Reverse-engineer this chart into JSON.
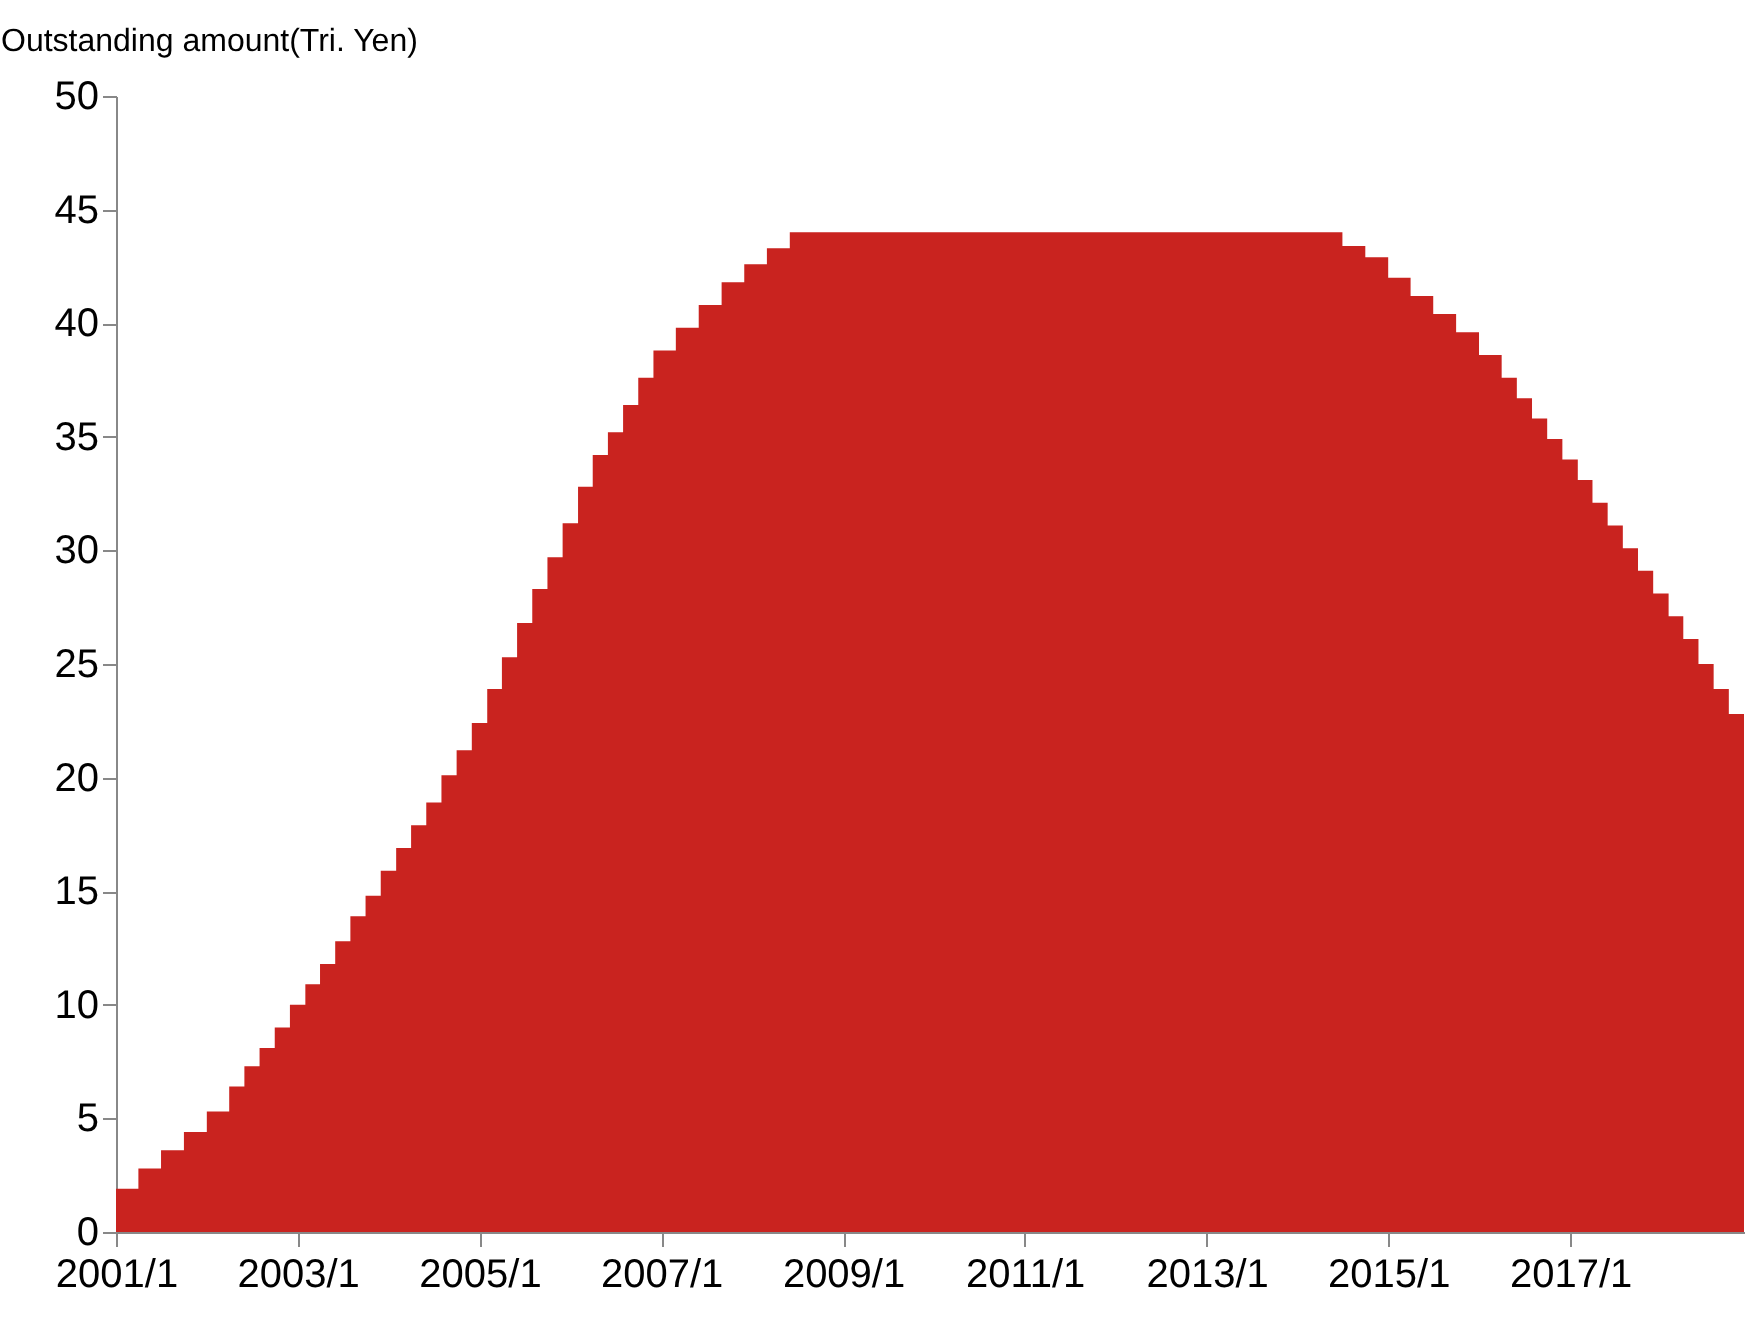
{
  "chart_data": {
    "type": "area",
    "ylabel": "Outstanding amount(Tri. Yen)",
    "x": [
      "2001-01",
      "2001-04",
      "2001-04",
      "2001-07",
      "2001-07",
      "2001-10",
      "2001-10",
      "2002-01",
      "2002-01",
      "2002-04",
      "2002-04",
      "2002-06",
      "2002-06",
      "2002-08",
      "2002-08",
      "2002-10",
      "2002-10",
      "2002-12",
      "2002-12",
      "2003-02",
      "2003-02",
      "2003-04",
      "2003-04",
      "2003-06",
      "2003-06",
      "2003-08",
      "2003-08",
      "2003-10",
      "2003-10",
      "2003-12",
      "2003-12",
      "2004-02",
      "2004-02",
      "2004-04",
      "2004-04",
      "2004-06",
      "2004-06",
      "2004-08",
      "2004-08",
      "2004-10",
      "2004-10",
      "2004-12",
      "2004-12",
      "2005-02",
      "2005-02",
      "2005-04",
      "2005-04",
      "2005-06",
      "2005-06",
      "2005-08",
      "2005-08",
      "2005-10",
      "2005-10",
      "2005-12",
      "2005-12",
      "2006-02",
      "2006-02",
      "2006-04",
      "2006-04",
      "2006-06",
      "2006-06",
      "2006-08",
      "2006-08",
      "2006-10",
      "2006-10",
      "2006-12",
      "2006-12",
      "2007-03",
      "2007-03",
      "2007-06",
      "2007-06",
      "2007-09",
      "2007-09",
      "2007-12",
      "2007-12",
      "2008-03",
      "2008-03",
      "2008-06",
      "2008-06",
      "2014-07",
      "2014-07",
      "2014-10",
      "2014-10",
      "2015-01",
      "2015-01",
      "2015-04",
      "2015-04",
      "2015-07",
      "2015-07",
      "2015-10",
      "2015-10",
      "2016-01",
      "2016-01",
      "2016-04",
      "2016-04",
      "2016-06",
      "2016-06",
      "2016-08",
      "2016-08",
      "2016-10",
      "2016-10",
      "2016-12",
      "2016-12",
      "2017-02",
      "2017-02",
      "2017-04",
      "2017-04",
      "2017-06",
      "2017-06",
      "2017-08",
      "2017-08",
      "2017-10",
      "2017-10",
      "2017-12",
      "2017-12",
      "2018-02",
      "2018-02",
      "2018-04",
      "2018-04",
      "2018-06",
      "2018-06",
      "2018-08",
      "2018-08",
      "2018-10",
      "2018-10",
      "2018-12"
    ],
    "values": [
      1.9,
      1.9,
      2.8,
      2.8,
      3.6,
      3.6,
      4.4,
      4.4,
      5.3,
      5.3,
      6.4,
      6.4,
      7.3,
      7.3,
      8.1,
      8.1,
      9.0,
      9.0,
      10.0,
      10.0,
      10.9,
      10.9,
      11.8,
      11.8,
      12.8,
      12.8,
      13.9,
      13.9,
      14.8,
      14.8,
      15.9,
      15.9,
      16.9,
      16.9,
      17.9,
      17.9,
      18.9,
      18.9,
      20.1,
      20.1,
      21.2,
      21.2,
      22.4,
      22.4,
      23.9,
      23.9,
      25.3,
      25.3,
      26.8,
      26.8,
      28.3,
      28.3,
      29.7,
      29.7,
      31.2,
      31.2,
      32.8,
      32.8,
      34.2,
      34.2,
      35.2,
      35.2,
      36.4,
      36.4,
      37.6,
      37.6,
      38.8,
      38.8,
      39.8,
      39.8,
      40.8,
      40.8,
      41.8,
      41.8,
      42.6,
      42.6,
      43.3,
      43.3,
      44.0,
      44.0,
      43.4,
      43.4,
      42.9,
      42.9,
      42.0,
      42.0,
      41.2,
      41.2,
      40.4,
      40.4,
      39.6,
      39.6,
      38.6,
      38.6,
      37.6,
      37.6,
      36.7,
      36.7,
      35.8,
      35.8,
      34.9,
      34.9,
      34.0,
      34.0,
      33.1,
      33.1,
      32.1,
      32.1,
      31.1,
      31.1,
      30.1,
      30.1,
      29.1,
      29.1,
      28.1,
      28.1,
      27.1,
      27.1,
      26.1,
      26.1,
      25.0,
      25.0,
      23.9,
      23.9,
      22.8,
      22.8
    ],
    "color": "#c9231f",
    "xlim": [
      "2001-01",
      "2018-12"
    ],
    "xticks": [
      {
        "value": "2001-01",
        "label": "2001/1"
      },
      {
        "value": "2003-01",
        "label": "2003/1"
      },
      {
        "value": "2005-01",
        "label": "2005/1"
      },
      {
        "value": "2007-01",
        "label": "2007/1"
      },
      {
        "value": "2009-01",
        "label": "2009/1"
      },
      {
        "value": "2011-01",
        "label": "2011/1"
      },
      {
        "value": "2013-01",
        "label": "2013/1"
      },
      {
        "value": "2015-01",
        "label": "2015/1"
      },
      {
        "value": "2017-01",
        "label": "2017/1"
      }
    ],
    "ylim": [
      0,
      50
    ],
    "yticks": [
      0,
      5,
      10,
      15,
      20,
      25,
      30,
      35,
      40,
      45,
      50
    ],
    "grid": false
  }
}
